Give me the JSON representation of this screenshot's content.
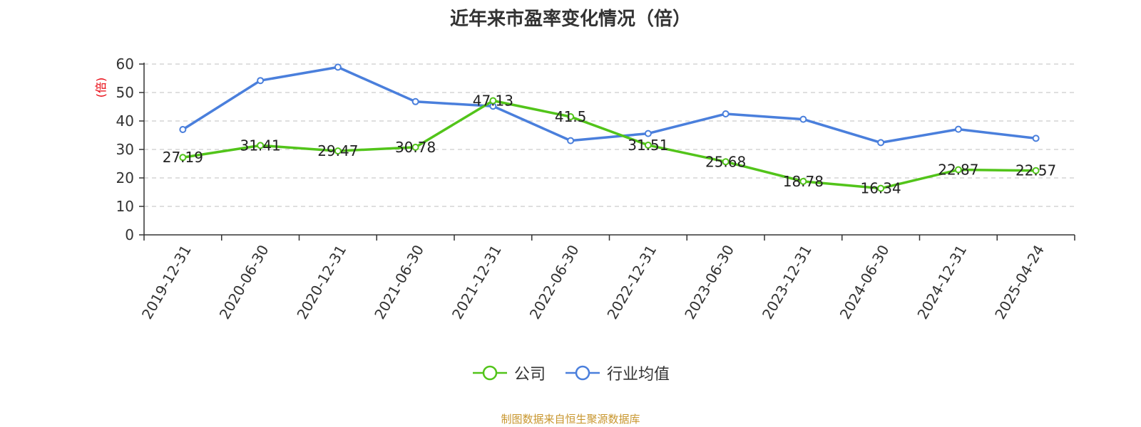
{
  "title": "近年来市盈率变化情况（倍）",
  "source_note": "制图数据来自恒生聚源数据库",
  "colors": {
    "company": "#52c41a",
    "industry": "#4a7fdc",
    "ylabel": "#e8000b",
    "grid": "#cccccc",
    "axis": "#333333"
  },
  "chart_data": {
    "type": "line",
    "title": "近年来市盈率变化情况（倍）",
    "xlabel": "",
    "ylabel": "(倍)",
    "ylim": [
      0,
      60
    ],
    "yticks": [
      0,
      10,
      20,
      30,
      40,
      50,
      60
    ],
    "grid": true,
    "legend_position": "bottom",
    "x": [
      "2019-12-31",
      "2020-06-30",
      "2020-12-31",
      "2021-06-30",
      "2021-12-31",
      "2022-06-30",
      "2022-12-31",
      "2023-06-30",
      "2023-12-31",
      "2024-06-30",
      "2024-12-31",
      "2025-04-24"
    ],
    "series": [
      {
        "name": "公司",
        "color": "#52c41a",
        "show_labels": true,
        "values": [
          27.19,
          31.41,
          29.47,
          30.78,
          47.13,
          41.5,
          31.51,
          25.68,
          18.78,
          16.34,
          22.87,
          22.57
        ]
      },
      {
        "name": "行业均值",
        "color": "#4a7fdc",
        "show_labels": false,
        "values": [
          37,
          54.2,
          58.9,
          46.8,
          45.2,
          33.1,
          35.6,
          42.5,
          40.6,
          32.4,
          37.1,
          33.9
        ]
      }
    ]
  }
}
